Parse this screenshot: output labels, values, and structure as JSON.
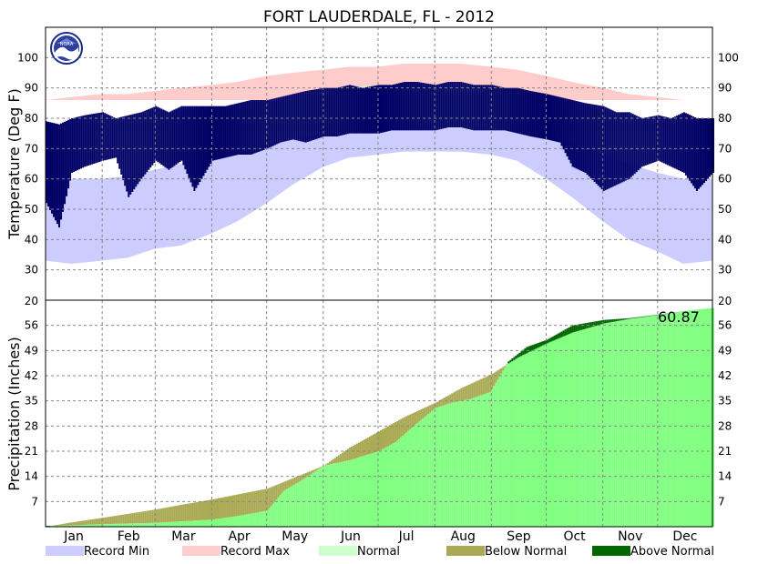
{
  "title": "FORT LAUDERDALE, FL - 2012",
  "months": [
    "Jan",
    "Feb",
    "Mar",
    "Apr",
    "May",
    "Jun",
    "Jul",
    "Aug",
    "Sep",
    "Oct",
    "Nov",
    "Dec"
  ],
  "legend": [
    {
      "label": "Record Min",
      "color": "#ccccff"
    },
    {
      "label": "Record Max",
      "color": "#ffcccc"
    },
    {
      "label": "Normal",
      "color": "#ccffcc"
    },
    {
      "label": "Below Normal",
      "color": "#aaaa55"
    },
    {
      "label": "Above Normal",
      "color": "#006600"
    }
  ],
  "logo_text": "NOAA",
  "chart_data": [
    {
      "type": "bar",
      "panel": "temperature",
      "ylabel": "Temperature (Deg F)",
      "ylim": [
        20,
        110
      ],
      "yticks": [
        30,
        40,
        50,
        60,
        70,
        80,
        90,
        100
      ],
      "top_edge_tick": "20",
      "grid": true,
      "colors": {
        "record_min": "#ccccff",
        "record_max": "#ffcccc",
        "normal": "#ccffcc",
        "observed": "#000066"
      },
      "series": [
        {
          "name": "Record Min",
          "x": [
            "Jan 1",
            "Jan 15",
            "Feb 1",
            "Feb 15",
            "Mar 1",
            "Mar 15",
            "Apr 1",
            "Apr 15",
            "May 1",
            "May 15",
            "Jun 1",
            "Jun 15",
            "Jul 1",
            "Jul 15",
            "Aug 1",
            "Aug 15",
            "Sep 1",
            "Sep 15",
            "Oct 1",
            "Oct 15",
            "Nov 1",
            "Nov 15",
            "Dec 1",
            "Dec 15",
            "Dec 31"
          ],
          "values": [
            33,
            32,
            33,
            34,
            37,
            38,
            42,
            46,
            52,
            58,
            64,
            67,
            68,
            69,
            69,
            69,
            68,
            66,
            60,
            54,
            46,
            40,
            36,
            32,
            33
          ]
        },
        {
          "name": "Record Max",
          "x": [
            "Jan 1",
            "Jan 15",
            "Feb 1",
            "Feb 15",
            "Mar 1",
            "Mar 15",
            "Apr 1",
            "Apr 15",
            "May 1",
            "May 15",
            "Jun 1",
            "Jun 15",
            "Jul 1",
            "Jul 15",
            "Aug 1",
            "Aug 15",
            "Sep 1",
            "Sep 15",
            "Oct 1",
            "Oct 15",
            "Nov 1",
            "Nov 15",
            "Dec 1",
            "Dec 15",
            "Dec 31"
          ],
          "values": [
            86,
            87,
            88,
            88,
            89,
            90,
            91,
            92,
            94,
            95,
            96,
            97,
            97,
            98,
            98,
            98,
            97,
            96,
            94,
            92,
            90,
            88,
            87,
            86,
            86
          ]
        },
        {
          "name": "Normal",
          "x": [
            "Jan 1",
            "Jan 15",
            "Feb 1",
            "Feb 15",
            "Mar 1",
            "Mar 15",
            "Apr 1",
            "Apr 15",
            "May 1",
            "May 15",
            "Jun 1",
            "Jun 15",
            "Jul 1",
            "Jul 15",
            "Aug 1",
            "Aug 15",
            "Sep 1",
            "Sep 15",
            "Oct 1",
            "Oct 15",
            "Nov 1",
            "Nov 15",
            "Dec 1",
            "Dec 15",
            "Dec 31"
          ],
          "low": [
            60,
            59,
            60,
            61,
            63,
            65,
            67,
            69,
            71,
            73,
            75,
            76,
            77,
            77,
            77,
            77,
            76,
            76,
            74,
            72,
            68,
            65,
            62,
            60,
            60
          ],
          "high": [
            76,
            76,
            77,
            78,
            79,
            81,
            82,
            84,
            85,
            87,
            89,
            90,
            91,
            91,
            91,
            91,
            90,
            89,
            87,
            85,
            82,
            80,
            78,
            76,
            76
          ]
        },
        {
          "name": "Observed",
          "x": [
            "Jan 1",
            "Jan 8",
            "Jan 15",
            "Jan 22",
            "Feb 1",
            "Feb 8",
            "Feb 15",
            "Feb 22",
            "Mar 1",
            "Mar 8",
            "Mar 15",
            "Mar 22",
            "Apr 1",
            "Apr 8",
            "Apr 15",
            "Apr 22",
            "May 1",
            "May 8",
            "May 15",
            "May 22",
            "Jun 1",
            "Jun 8",
            "Jun 15",
            "Jun 22",
            "Jul 1",
            "Jul 8",
            "Jul 15",
            "Jul 22",
            "Aug 1",
            "Aug 8",
            "Aug 15",
            "Aug 22",
            "Sep 1",
            "Sep 8",
            "Sep 15",
            "Sep 22",
            "Oct 1",
            "Oct 8",
            "Oct 15",
            "Oct 22",
            "Nov 1",
            "Nov 8",
            "Nov 15",
            "Nov 22",
            "Dec 1",
            "Dec 8",
            "Dec 15",
            "Dec 22",
            "Dec 31"
          ],
          "low": [
            52,
            44,
            62,
            64,
            66,
            67,
            54,
            60,
            66,
            63,
            66,
            56,
            66,
            67,
            68,
            68,
            70,
            72,
            73,
            72,
            74,
            74,
            75,
            75,
            75,
            76,
            76,
            76,
            76,
            77,
            77,
            76,
            76,
            76,
            75,
            74,
            73,
            72,
            64,
            62,
            56,
            58,
            60,
            64,
            66,
            64,
            62,
            56,
            62
          ],
          "high": [
            79,
            78,
            80,
            81,
            82,
            80,
            81,
            82,
            84,
            82,
            84,
            84,
            84,
            84,
            85,
            86,
            86,
            87,
            88,
            89,
            90,
            90,
            91,
            90,
            91,
            91,
            92,
            92,
            91,
            92,
            92,
            91,
            91,
            90,
            90,
            89,
            88,
            87,
            86,
            85,
            84,
            82,
            82,
            80,
            81,
            80,
            82,
            80,
            80
          ]
        }
      ]
    },
    {
      "type": "area",
      "panel": "precipitation",
      "ylabel": "Precipitation (Inches)",
      "ylim": [
        0,
        63
      ],
      "yticks": [
        7,
        14,
        21,
        28,
        35,
        42,
        49,
        56
      ],
      "top_edge_tick": "20",
      "grid": true,
      "annotation": "60.87",
      "colors": {
        "observed": "#80ff80",
        "below_normal": "#aaaa55",
        "above_normal": "#006600"
      },
      "series": [
        {
          "name": "Observed",
          "x": [
            "Jan 1",
            "Jan 15",
            "Feb 1",
            "Feb 15",
            "Mar 1",
            "Mar 15",
            "Apr 1",
            "Apr 15",
            "May 1",
            "May 10",
            "May 20",
            "Jun 1",
            "Jun 15",
            "Jul 1",
            "Jul 10",
            "Jul 20",
            "Aug 1",
            "Aug 10",
            "Aug 20",
            "Aug 31",
            "Sep 10",
            "Sep 20",
            "Oct 1",
            "Oct 15",
            "Nov 1",
            "Nov 15",
            "Dec 1",
            "Dec 15",
            "Dec 31"
          ],
          "values": [
            0.2,
            0.4,
            0.7,
            0.9,
            1.1,
            1.5,
            2.0,
            3.0,
            4.5,
            10.0,
            13.0,
            17.0,
            18.5,
            21.0,
            23.5,
            28.0,
            33.0,
            34.5,
            35.5,
            37.5,
            46.0,
            50.0,
            52.0,
            56.0,
            57.5,
            58.0,
            59.0,
            60.0,
            60.87
          ]
        },
        {
          "name": "Normal",
          "x": [
            "Jan 1",
            "Jan 15",
            "Feb 1",
            "Feb 15",
            "Mar 1",
            "Mar 15",
            "Apr 1",
            "Apr 15",
            "May 1",
            "May 15",
            "Jun 1",
            "Jun 15",
            "Jul 1",
            "Jul 15",
            "Aug 1",
            "Aug 15",
            "Sep 1",
            "Sep 15",
            "Oct 1",
            "Oct 15",
            "Nov 1",
            "Nov 15",
            "Dec 1",
            "Dec 15",
            "Dec 31"
          ],
          "values": [
            0.0,
            1.2,
            2.5,
            3.6,
            4.8,
            6.1,
            7.6,
            9.0,
            10.6,
            13.5,
            17.0,
            22.0,
            26.5,
            30.5,
            34.5,
            38.5,
            42.5,
            47.0,
            51.0,
            54.0,
            56.5,
            57.8,
            58.9,
            60.0,
            60.87
          ]
        }
      ]
    }
  ]
}
